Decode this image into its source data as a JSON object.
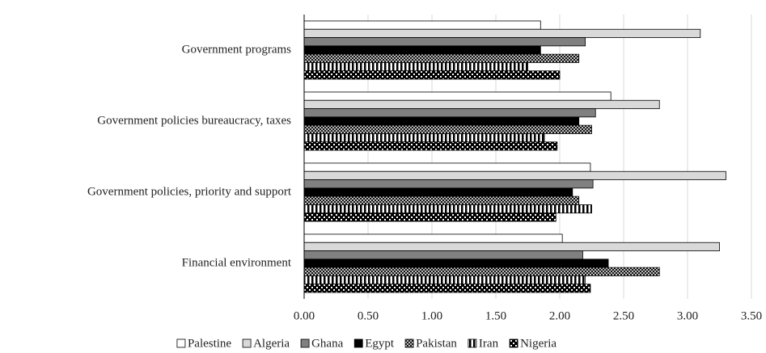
{
  "chart_data": {
    "type": "hbar",
    "categories": [
      "Government programs",
      "Government policies bureaucracy, taxes",
      "Government policies, priority and support",
      "Financial environment"
    ],
    "series": [
      {
        "name": "Palestine",
        "color": "#ffffff",
        "pattern": "solid",
        "values": [
          1.85,
          2.4,
          2.24,
          2.02
        ]
      },
      {
        "name": "Algeria",
        "color": "#d9d9d9",
        "pattern": "solid",
        "values": [
          3.1,
          2.78,
          3.3,
          3.25
        ]
      },
      {
        "name": "Ghana",
        "color": "#808080",
        "pattern": "solid",
        "values": [
          2.2,
          2.28,
          2.26,
          2.18
        ]
      },
      {
        "name": "Egypt",
        "color": "#000000",
        "pattern": "solid",
        "values": [
          1.85,
          2.15,
          2.1,
          2.38
        ]
      },
      {
        "name": "Pakistan",
        "color": "#000000",
        "pattern": "crosshatch",
        "values": [
          2.15,
          2.25,
          2.15,
          2.78
        ]
      },
      {
        "name": "Iran",
        "color": "#000000",
        "pattern": "vertical",
        "values": [
          1.75,
          1.88,
          2.25,
          2.2
        ]
      },
      {
        "name": "Nigeria",
        "color": "#000000",
        "pattern": "dots",
        "values": [
          2.0,
          1.98,
          1.97,
          2.24
        ]
      }
    ],
    "xlim": [
      0,
      3.5
    ],
    "xticks": [
      {
        "value": 0,
        "label": "0.00"
      },
      {
        "value": 0.5,
        "label": "0.50"
      },
      {
        "value": 1,
        "label": "1.00"
      },
      {
        "value": 1.5,
        "label": "1.50"
      },
      {
        "value": 2,
        "label": "2.00"
      },
      {
        "value": 2.5,
        "label": "2.50"
      },
      {
        "value": 3,
        "label": "3.00"
      },
      {
        "value": 3.5,
        "label": "3.50"
      }
    ],
    "grid": true,
    "legend": "bottom"
  }
}
